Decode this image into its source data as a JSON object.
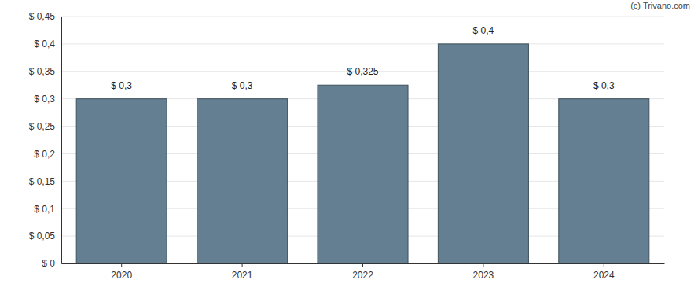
{
  "chart_data": {
    "type": "bar",
    "annotations": [
      "(c) Trivano.com"
    ],
    "categories": [
      "2020",
      "2021",
      "2022",
      "2023",
      "2024"
    ],
    "values": [
      0.3,
      0.3,
      0.325,
      0.4,
      0.3
    ],
    "value_labels": [
      "$ 0,3",
      "$ 0,3",
      "$ 0,325",
      "$ 0,4",
      "$ 0,3"
    ],
    "data_labels": true,
    "color": "#647f91",
    "ylim": [
      0,
      0.45
    ],
    "yticks": [
      {
        "value": 0,
        "label": "$ 0"
      },
      {
        "value": 0.05,
        "label": "$ 0,05"
      },
      {
        "value": 0.1,
        "label": "$ 0,1"
      },
      {
        "value": 0.15,
        "label": "$ 0,15"
      },
      {
        "value": 0.2,
        "label": "$ 0,2"
      },
      {
        "value": 0.25,
        "label": "$ 0,25"
      },
      {
        "value": 0.3,
        "label": "$ 0,3"
      },
      {
        "value": 0.35,
        "label": "$ 0,35"
      },
      {
        "value": 0.4,
        "label": "$ 0,4"
      },
      {
        "value": 0.45,
        "label": "$ 0,45"
      }
    ],
    "grid": true
  }
}
